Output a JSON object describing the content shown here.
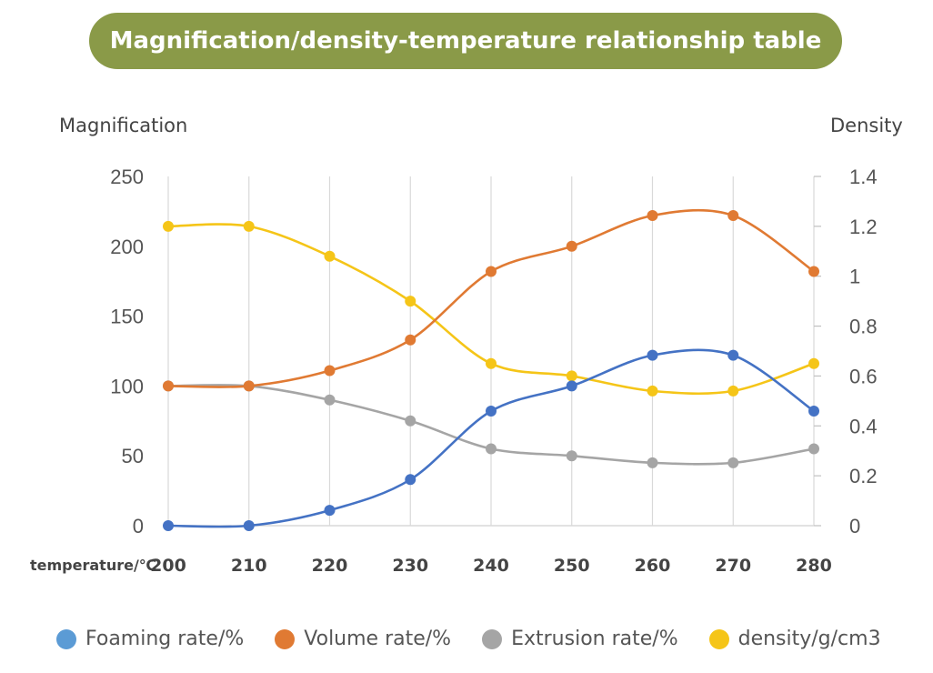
{
  "title": "Magnification/density-temperature relationship table",
  "colors": {
    "title_bg": "#8a9a48",
    "foaming": "#4472c4",
    "volume": "#e07a33",
    "extrusion": "#a5a5a5",
    "density": "#f5c518",
    "foaming_legend": "#5b9bd5",
    "grid": "#d9d9d9"
  },
  "chart_data": {
    "type": "line",
    "title": "Magnification/density-temperature relationship table",
    "xlabel": "temperature/℃",
    "ylabel_left": "Magnification",
    "ylabel_right": "Density",
    "categories": [
      "200",
      "210",
      "220",
      "230",
      "240",
      "250",
      "260",
      "270",
      "280"
    ],
    "y_left": {
      "min": 0,
      "max": 250,
      "ticks": [
        "0",
        "50",
        "100",
        "150",
        "200",
        "250"
      ]
    },
    "y_right": {
      "min": 0,
      "max": 1.4,
      "ticks": [
        "0",
        "0.2",
        "0.4",
        "0.6",
        "0.8",
        "1",
        "1.2",
        "1.4"
      ]
    },
    "grid": true,
    "legend_position": "bottom",
    "series": [
      {
        "name": "Foaming rate/%",
        "axis": "left",
        "color": "#4472c4",
        "legend_color": "#5b9bd5",
        "values": [
          0,
          0,
          11,
          33,
          82,
          100,
          122,
          122,
          82
        ]
      },
      {
        "name": "Volume rate/%",
        "axis": "left",
        "color": "#e07a33",
        "legend_color": "#e07a33",
        "values": [
          100,
          100,
          111,
          133,
          182,
          200,
          222,
          222,
          182
        ]
      },
      {
        "name": "Extrusion rate/%",
        "axis": "left",
        "color": "#a5a5a5",
        "legend_color": "#a5a5a5",
        "values": [
          100,
          100,
          90,
          75,
          55,
          50,
          45,
          45,
          55
        ]
      },
      {
        "name": "density/g/cm3",
        "axis": "right",
        "color": "#f5c518",
        "legend_color": "#f5c518",
        "values": [
          1.2,
          1.2,
          1.08,
          0.9,
          0.65,
          0.6,
          0.54,
          0.54,
          0.65
        ]
      }
    ]
  }
}
